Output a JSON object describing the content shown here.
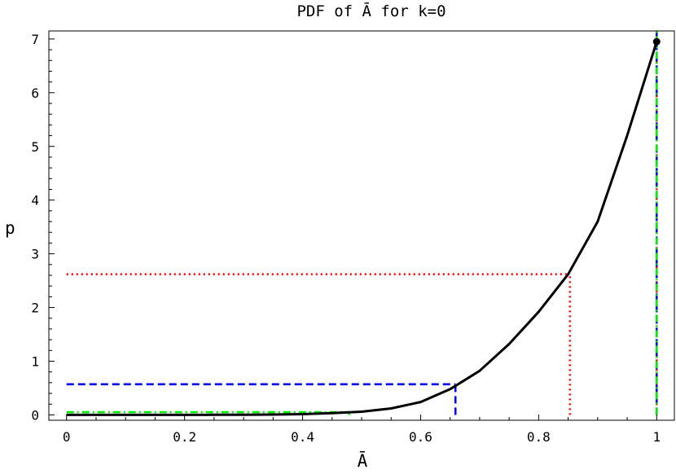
{
  "chart_data": {
    "type": "line",
    "title": "PDF of Ā for k=0",
    "xlabel": "Ā",
    "ylabel": "p",
    "xlim": [
      -0.03,
      1.03
    ],
    "ylim": [
      -0.1,
      7.15
    ],
    "x_ticks": [
      0,
      0.2,
      0.4,
      0.6,
      0.8,
      1
    ],
    "x_tick_labels": [
      "0",
      "0.2",
      "0.4",
      "0.6",
      "0.8",
      "1"
    ],
    "y_ticks": [
      0,
      1,
      2,
      3,
      4,
      5,
      6,
      7
    ],
    "y_tick_labels": [
      "0",
      "1",
      "2",
      "3",
      "4",
      "5",
      "6",
      "7"
    ],
    "grid": false,
    "curve": {
      "color": "#000000",
      "x": [
        0,
        0.05,
        0.1,
        0.15,
        0.2,
        0.25,
        0.3,
        0.35,
        0.4,
        0.45,
        0.5,
        0.55,
        0.6,
        0.65,
        0.7,
        0.75,
        0.8,
        0.85,
        0.9,
        0.95,
        1.0
      ],
      "y": [
        0,
        0,
        0,
        0,
        0,
        0.001,
        0.002,
        0.006,
        0.014,
        0.032,
        0.06,
        0.12,
        0.24,
        0.48,
        0.82,
        1.32,
        1.92,
        2.62,
        3.6,
        5.2,
        6.95
      ]
    },
    "endpoint": {
      "x": 1.0,
      "y": 6.95
    },
    "reference_lines": [
      {
        "style": "dotted",
        "color": "#ff0000",
        "x": 0.853,
        "y": 2.62
      },
      {
        "style": "dashed",
        "color": "#0000ee",
        "x": 0.659,
        "y": 0.57
      },
      {
        "style": "dashdot",
        "color": "#00ee00",
        "x": 0.479,
        "y": 0.05
      },
      {
        "style": "dotted",
        "color": "#ff0000",
        "x": 1.0,
        "y": 7.15
      },
      {
        "style": "dashed",
        "color": "#0000ee",
        "x": 1.0,
        "y": 7.15
      },
      {
        "style": "dashdot",
        "color": "#00ee00",
        "x": 1.0,
        "y": 7.15
      }
    ]
  }
}
